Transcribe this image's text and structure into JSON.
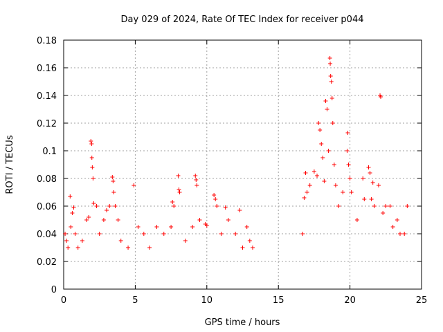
{
  "chart_data": {
    "type": "scatter",
    "title": "Day 029 of 2024, Rate Of TEC Index for receiver p044",
    "xlabel": "GPS time / hours",
    "ylabel": "ROTI / TECUs",
    "xlim": [
      0,
      25
    ],
    "ylim": [
      0,
      0.18
    ],
    "xticks": [
      0,
      5,
      10,
      15,
      20,
      25
    ],
    "xtick_labels": [
      "0",
      "5",
      "10",
      "15",
      "20",
      "25"
    ],
    "yticks": [
      0,
      0.02,
      0.04,
      0.06,
      0.08,
      0.1,
      0.12,
      0.14,
      0.16,
      0.18
    ],
    "ytick_labels": [
      "0",
      "0.02",
      "0.04",
      "0.06",
      "0.08",
      "0.1",
      "0.12",
      "0.14",
      "0.16",
      "0.18"
    ],
    "grid": true,
    "marker": "+",
    "color": "#ff0000",
    "data_gap_hours": [
      13.3,
      16.6
    ],
    "series": [
      {
        "name": "ROTI",
        "points": [
          [
            0.1,
            0.04
          ],
          [
            0.2,
            0.035
          ],
          [
            0.3,
            0.03
          ],
          [
            0.45,
            0.067
          ],
          [
            0.5,
            0.045
          ],
          [
            0.6,
            0.055
          ],
          [
            0.7,
            0.059
          ],
          [
            0.8,
            0.04
          ],
          [
            1.0,
            0.03
          ],
          [
            1.3,
            0.035
          ],
          [
            1.6,
            0.05
          ],
          [
            1.75,
            0.052
          ],
          [
            1.9,
            0.107
          ],
          [
            1.95,
            0.105
          ],
          [
            1.97,
            0.095
          ],
          [
            2.0,
            0.088
          ],
          [
            2.05,
            0.08
          ],
          [
            2.1,
            0.062
          ],
          [
            2.3,
            0.06
          ],
          [
            2.5,
            0.04
          ],
          [
            2.8,
            0.05
          ],
          [
            3.0,
            0.057
          ],
          [
            3.2,
            0.06
          ],
          [
            3.4,
            0.081
          ],
          [
            3.45,
            0.078
          ],
          [
            3.5,
            0.07
          ],
          [
            3.6,
            0.06
          ],
          [
            3.8,
            0.05
          ],
          [
            4.0,
            0.035
          ],
          [
            4.5,
            0.03
          ],
          [
            4.9,
            0.075
          ],
          [
            5.2,
            0.045
          ],
          [
            5.6,
            0.04
          ],
          [
            6.0,
            0.03
          ],
          [
            6.5,
            0.045
          ],
          [
            7.0,
            0.04
          ],
          [
            7.5,
            0.045
          ],
          [
            7.6,
            0.063
          ],
          [
            7.7,
            0.06
          ],
          [
            8.0,
            0.082
          ],
          [
            8.05,
            0.072
          ],
          [
            8.1,
            0.07
          ],
          [
            8.5,
            0.035
          ],
          [
            9.0,
            0.045
          ],
          [
            9.2,
            0.082
          ],
          [
            9.25,
            0.079
          ],
          [
            9.3,
            0.075
          ],
          [
            9.5,
            0.05
          ],
          [
            9.9,
            0.047
          ],
          [
            10.0,
            0.046
          ],
          [
            10.5,
            0.068
          ],
          [
            10.6,
            0.065
          ],
          [
            10.7,
            0.06
          ],
          [
            11.0,
            0.04
          ],
          [
            11.3,
            0.059
          ],
          [
            11.5,
            0.05
          ],
          [
            12.0,
            0.04
          ],
          [
            12.3,
            0.057
          ],
          [
            12.5,
            0.03
          ],
          [
            12.8,
            0.045
          ],
          [
            13.0,
            0.035
          ],
          [
            13.2,
            0.03
          ],
          [
            16.7,
            0.04
          ],
          [
            16.8,
            0.066
          ],
          [
            16.9,
            0.084
          ],
          [
            17.0,
            0.07
          ],
          [
            17.2,
            0.075
          ],
          [
            17.5,
            0.085
          ],
          [
            17.7,
            0.082
          ],
          [
            17.8,
            0.12
          ],
          [
            17.9,
            0.115
          ],
          [
            18.0,
            0.105
          ],
          [
            18.1,
            0.095
          ],
          [
            18.2,
            0.078
          ],
          [
            18.3,
            0.136
          ],
          [
            18.4,
            0.13
          ],
          [
            18.5,
            0.1
          ],
          [
            18.6,
            0.167
          ],
          [
            18.62,
            0.163
          ],
          [
            18.65,
            0.154
          ],
          [
            18.7,
            0.15
          ],
          [
            18.75,
            0.138
          ],
          [
            18.8,
            0.12
          ],
          [
            18.9,
            0.09
          ],
          [
            19.0,
            0.075
          ],
          [
            19.2,
            0.06
          ],
          [
            19.5,
            0.07
          ],
          [
            19.8,
            0.1
          ],
          [
            19.85,
            0.113
          ],
          [
            19.9,
            0.09
          ],
          [
            20.0,
            0.08
          ],
          [
            20.1,
            0.07
          ],
          [
            20.5,
            0.05
          ],
          [
            20.9,
            0.08
          ],
          [
            21.0,
            0.065
          ],
          [
            21.3,
            0.088
          ],
          [
            21.4,
            0.084
          ],
          [
            21.5,
            0.065
          ],
          [
            21.6,
            0.077
          ],
          [
            21.7,
            0.06
          ],
          [
            22.0,
            0.075
          ],
          [
            22.1,
            0.14
          ],
          [
            22.15,
            0.139
          ],
          [
            22.3,
            0.055
          ],
          [
            22.5,
            0.06
          ],
          [
            22.8,
            0.06
          ],
          [
            23.0,
            0.045
          ],
          [
            23.3,
            0.05
          ],
          [
            23.5,
            0.04
          ],
          [
            23.8,
            0.04
          ],
          [
            24.0,
            0.06
          ]
        ]
      }
    ]
  }
}
